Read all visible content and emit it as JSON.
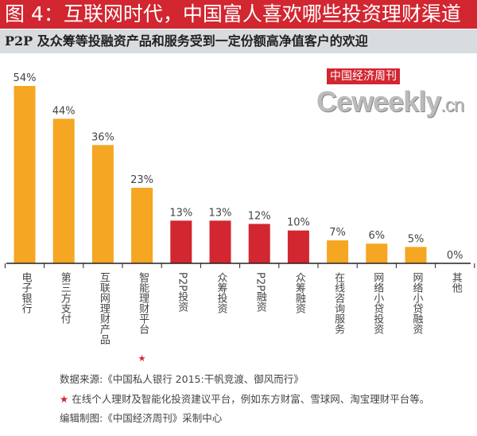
{
  "title": "图 4：互联网时代，中国富人喜欢哪些投资理财渠道",
  "subtitle": "P2P 及众筹等投融资产品和服务受到一定份额高净值客户的欢迎",
  "watermark": {
    "brand": "中国经济周刊",
    "site": "Ceweekly",
    "tld": ".cn"
  },
  "colors": {
    "orange": "#f5a623",
    "red": "#d22630"
  },
  "chart_data": {
    "type": "bar",
    "title": "图 4：互联网时代，中国富人喜欢哪些投资理财渠道",
    "categories": [
      "电子银行",
      "第三方支付",
      "互联网理财产品",
      "智能理财平台",
      "P2P 投资",
      "众筹投资",
      "P2P 融资",
      "众筹融资",
      "在线咨询服务",
      "网络小贷投资",
      "网络小贷融资",
      "其他"
    ],
    "values": [
      54,
      44,
      36,
      23,
      13,
      13,
      12,
      10,
      7,
      6,
      5,
      0
    ],
    "labels": [
      "54%",
      "44%",
      "36%",
      "23%",
      "13%",
      "13%",
      "12%",
      "10%",
      "7%",
      "6%",
      "5%",
      "0%"
    ],
    "bar_colors": [
      "orange",
      "orange",
      "orange",
      "orange",
      "red",
      "red",
      "red",
      "red",
      "orange",
      "orange",
      "orange",
      "orange"
    ],
    "star_marker": {
      "category_index": 3,
      "symbol": "★"
    },
    "ylim": [
      0,
      60
    ],
    "xlabel": "",
    "ylabel": "",
    "grid": false
  },
  "footer": {
    "source": "数据来源:《中国私人银行 2015:干帆竞渡、御风而行》",
    "star": "★",
    "note": "在线个人理财及智能化投资建议平台，例如东方财富、雪球网、淘宝理财平台等。",
    "credit": "编辑制图:《中国经济周刊》采制中心"
  }
}
